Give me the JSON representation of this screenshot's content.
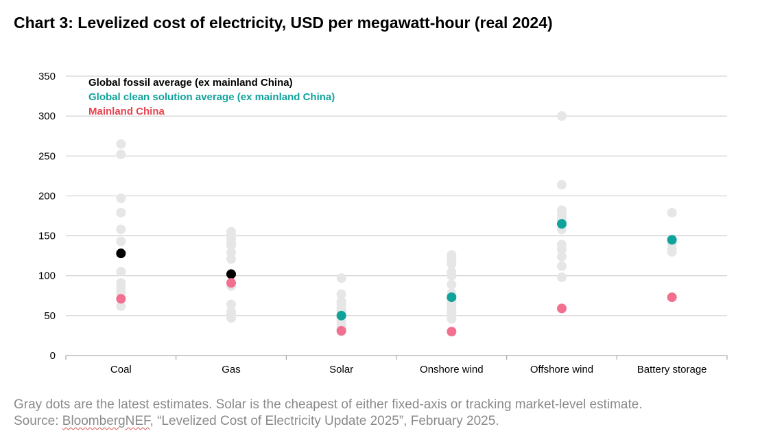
{
  "title": "Chart 3: Levelized cost of electricity, USD per megawatt-hour (real 2024)",
  "footnote": {
    "line1": "Gray dots are the latest estimates. Solar is the cheapest of either fixed-axis or tracking market-level estimate.",
    "source_prefix": "Source: ",
    "source_org": "BloombergNEF",
    "source_rest": ", “Levelized Cost of Electricity Update 2025”, February 2025."
  },
  "colors": {
    "estimate": "#e6e6e6",
    "fossil_avg": "#000000",
    "clean_avg": "#10a39b",
    "china": "#f2708f",
    "gridline": "#c8c8c8",
    "axis": "#999999"
  },
  "chart_data": {
    "type": "scatter",
    "title": "Chart 3: Levelized cost of electricity, USD per megawatt-hour (real 2024)",
    "xlabel": "",
    "ylabel": "",
    "ylim": [
      0,
      350
    ],
    "yticks": [
      0,
      50,
      100,
      150,
      200,
      250,
      300,
      350
    ],
    "grid": true,
    "legend_position": "top-left",
    "categories": [
      "Coal",
      "Gas",
      "Solar",
      "Onshore wind",
      "Offshore wind",
      "Battery storage"
    ],
    "legend": [
      {
        "label": "Global fossil average (ex mainland China)",
        "color": "#000000"
      },
      {
        "label": "Global clean solution average (ex mainland China)",
        "color": "#10a39b"
      },
      {
        "label": "Mainland China",
        "color": "#e8434f"
      }
    ],
    "series": [
      {
        "color": "#e6e6e6",
        "points": [
          [
            "Coal",
            265
          ],
          [
            "Coal",
            252
          ],
          [
            "Coal",
            197
          ],
          [
            "Coal",
            179
          ],
          [
            "Coal",
            158
          ],
          [
            "Coal",
            143
          ],
          [
            "Coal",
            105
          ],
          [
            "Coal",
            91
          ],
          [
            "Coal",
            87
          ],
          [
            "Coal",
            82
          ],
          [
            "Coal",
            78
          ],
          [
            "Coal",
            62
          ],
          [
            "Gas",
            155
          ],
          [
            "Gas",
            150
          ],
          [
            "Gas",
            146
          ],
          [
            "Gas",
            141
          ],
          [
            "Gas",
            138
          ],
          [
            "Gas",
            129
          ],
          [
            "Gas",
            121
          ],
          [
            "Gas",
            87
          ],
          [
            "Gas",
            64
          ],
          [
            "Gas",
            55
          ],
          [
            "Gas",
            51
          ],
          [
            "Gas",
            47
          ],
          [
            "Solar",
            97
          ],
          [
            "Solar",
            77
          ],
          [
            "Solar",
            68
          ],
          [
            "Solar",
            64
          ],
          [
            "Solar",
            60
          ],
          [
            "Solar",
            56
          ],
          [
            "Solar",
            52
          ],
          [
            "Solar",
            47
          ],
          [
            "Solar",
            43
          ],
          [
            "Solar",
            40
          ],
          [
            "Solar",
            37
          ],
          [
            "Solar",
            34
          ],
          [
            "Solar",
            30
          ],
          [
            "Onshore wind",
            126
          ],
          [
            "Onshore wind",
            120
          ],
          [
            "Onshore wind",
            115
          ],
          [
            "Onshore wind",
            105
          ],
          [
            "Onshore wind",
            100
          ],
          [
            "Onshore wind",
            89
          ],
          [
            "Onshore wind",
            78
          ],
          [
            "Onshore wind",
            71
          ],
          [
            "Onshore wind",
            66
          ],
          [
            "Onshore wind",
            62
          ],
          [
            "Onshore wind",
            58
          ],
          [
            "Onshore wind",
            54
          ],
          [
            "Onshore wind",
            50
          ],
          [
            "Onshore wind",
            46
          ],
          [
            "Offshore wind",
            300
          ],
          [
            "Offshore wind",
            214
          ],
          [
            "Offshore wind",
            182
          ],
          [
            "Offshore wind",
            176
          ],
          [
            "Offshore wind",
            171
          ],
          [
            "Offshore wind",
            158
          ],
          [
            "Offshore wind",
            139
          ],
          [
            "Offshore wind",
            133
          ],
          [
            "Offshore wind",
            124
          ],
          [
            "Offshore wind",
            112
          ],
          [
            "Offshore wind",
            98
          ],
          [
            "Battery storage",
            179
          ],
          [
            "Battery storage",
            140
          ],
          [
            "Battery storage",
            133
          ],
          [
            "Battery storage",
            130
          ]
        ]
      },
      {
        "name": "Global fossil average (ex mainland China)",
        "color": "#000000",
        "points": [
          [
            "Coal",
            128
          ],
          [
            "Gas",
            102
          ]
        ]
      },
      {
        "name": "Global clean solution average (ex mainland China)",
        "color": "#10a39b",
        "points": [
          [
            "Solar",
            50
          ],
          [
            "Onshore wind",
            73
          ],
          [
            "Offshore wind",
            165
          ],
          [
            "Battery storage",
            145
          ]
        ]
      },
      {
        "name": "Mainland China",
        "color": "#f2708f",
        "points": [
          [
            "Coal",
            71
          ],
          [
            "Gas",
            91
          ],
          [
            "Solar",
            31
          ],
          [
            "Onshore wind",
            30
          ],
          [
            "Offshore wind",
            59
          ],
          [
            "Battery storage",
            73
          ]
        ]
      }
    ]
  }
}
